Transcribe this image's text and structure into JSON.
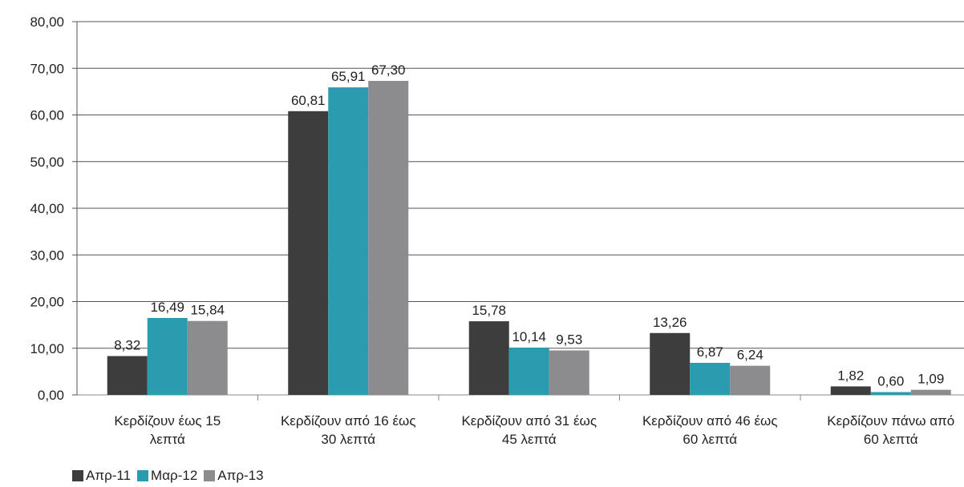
{
  "chart_data": {
    "type": "bar",
    "categories": [
      [
        "Κερδίζουν έως 15",
        "λεπτά"
      ],
      [
        "Κερδίζουν από 16 έως",
        "30 λεπτά"
      ],
      [
        "Κερδίζουν από 31 έως",
        "45 λεπτά"
      ],
      [
        "Κερδίζουν από 46 έως",
        "60 λεπτά"
      ],
      [
        "Κερδίζουν πάνω από",
        "60 λεπτά"
      ]
    ],
    "series": [
      {
        "name": "Απρ-11",
        "color": "#3d3d3d",
        "values": [
          8.32,
          60.81,
          15.78,
          13.26,
          1.82
        ],
        "labels": [
          "8,32",
          "60,81",
          "15,78",
          "13,26",
          "1,82"
        ]
      },
      {
        "name": "Μαρ-12",
        "color": "#2a9cb0",
        "values": [
          16.49,
          65.91,
          10.14,
          6.87,
          0.6
        ],
        "labels": [
          "16,49",
          "65,91",
          "10,14",
          "6,87",
          "0,60"
        ]
      },
      {
        "name": "Απρ-13",
        "color": "#8c8c8e",
        "values": [
          15.84,
          67.3,
          9.53,
          6.24,
          1.09
        ],
        "labels": [
          "15,84",
          "67,30",
          "9,53",
          "6,24",
          "1,09"
        ]
      }
    ],
    "ylim": [
      0,
      80
    ],
    "yticks": [
      0,
      10,
      20,
      30,
      40,
      50,
      60,
      70,
      80
    ],
    "ytick_labels": [
      "0,00",
      "10,00",
      "20,00",
      "30,00",
      "40,00",
      "50,00",
      "60,00",
      "70,00",
      "80,00"
    ],
    "grid": true,
    "legend_position": "bottom-left"
  }
}
